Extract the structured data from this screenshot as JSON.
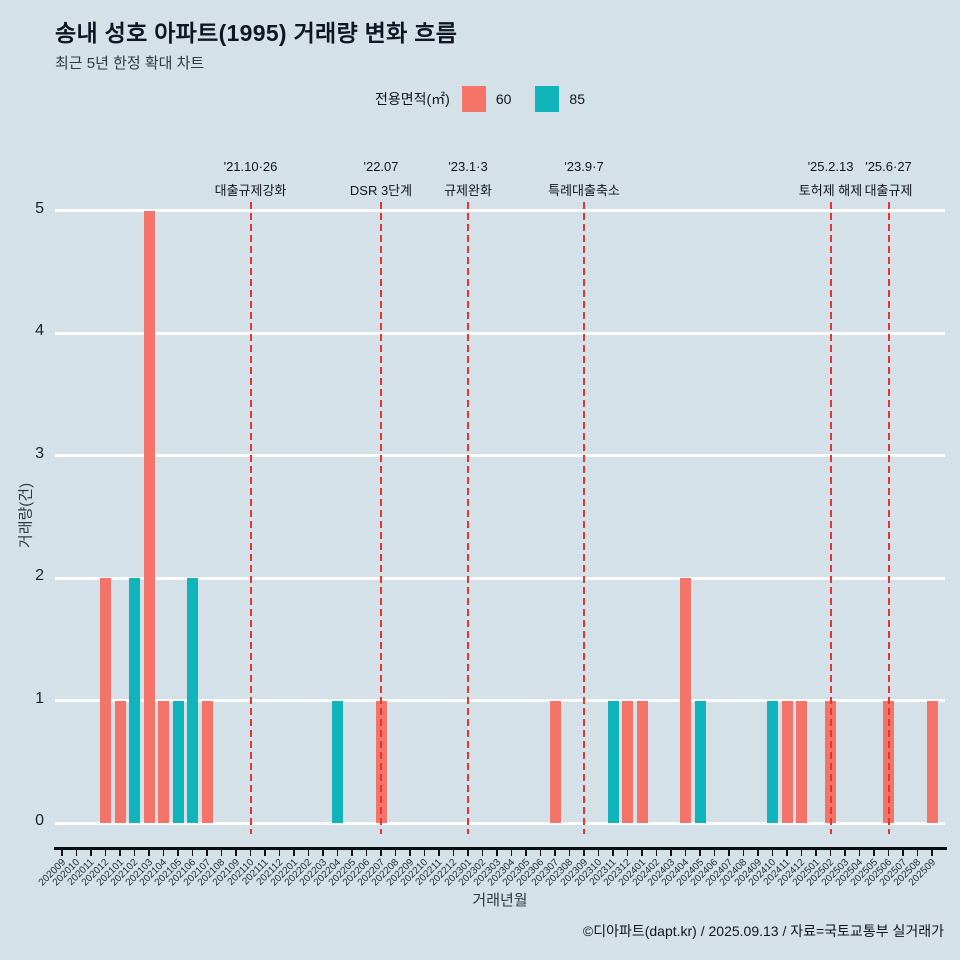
{
  "header": {
    "title": "송내 성호 아파트(1995) 거래량 변화 흐름",
    "subtitle": "최근 5년 한정 확대 차트"
  },
  "legend": {
    "label": "전용면적(㎡)",
    "items": [
      {
        "label": "60",
        "color": "#f4746a"
      },
      {
        "label": "85",
        "color": "#0fb5bb"
      }
    ]
  },
  "chart_data": {
    "type": "bar",
    "title": "송내 성호 아파트(1995) 거래량 변화 흐름",
    "xlabel": "거래년월",
    "ylabel": "거래량(건)",
    "ylim": [
      0,
      5
    ],
    "yticks": [
      0,
      1,
      2,
      3,
      4,
      5
    ],
    "grid": "horizontal-white",
    "legend_position": "top",
    "annotation_color": "#e8342e",
    "categories": [
      "202009",
      "202010",
      "202011",
      "202012",
      "202101",
      "202102",
      "202103",
      "202104",
      "202105",
      "202106",
      "202107",
      "202108",
      "202109",
      "202110",
      "202111",
      "202112",
      "202201",
      "202202",
      "202203",
      "202204",
      "202205",
      "202206",
      "202207",
      "202208",
      "202209",
      "202210",
      "202211",
      "202212",
      "202301",
      "202302",
      "202303",
      "202304",
      "202305",
      "202306",
      "202307",
      "202308",
      "202309",
      "202310",
      "202311",
      "202312",
      "202401",
      "202402",
      "202403",
      "202404",
      "202405",
      "202406",
      "202407",
      "202408",
      "202409",
      "202410",
      "202411",
      "202412",
      "202501",
      "202502",
      "202503",
      "202504",
      "202505",
      "202506",
      "202507",
      "202508",
      "202509"
    ],
    "series": [
      {
        "name": "60",
        "color": "#f4746a",
        "values": [
          0,
          0,
          0,
          2,
          1,
          0,
          5,
          1,
          0,
          0,
          1,
          0,
          0,
          0,
          0,
          0,
          0,
          0,
          0,
          0,
          0,
          0,
          1,
          0,
          0,
          0,
          0,
          0,
          0,
          0,
          0,
          0,
          0,
          0,
          1,
          0,
          0,
          0,
          0,
          1,
          1,
          0,
          0,
          2,
          0,
          0,
          0,
          0,
          0,
          0,
          1,
          1,
          0,
          1,
          0,
          0,
          0,
          1,
          0,
          0,
          1
        ]
      },
      {
        "name": "85",
        "color": "#0fb5bb",
        "values": [
          0,
          0,
          0,
          0,
          0,
          2,
          0,
          0,
          1,
          2,
          0,
          0,
          0,
          0,
          0,
          0,
          0,
          0,
          0,
          1,
          0,
          0,
          0,
          0,
          0,
          0,
          0,
          0,
          0,
          0,
          0,
          0,
          0,
          0,
          0,
          0,
          0,
          0,
          1,
          0,
          0,
          0,
          0,
          0,
          1,
          0,
          0,
          0,
          0,
          1,
          0,
          0,
          0,
          0,
          0,
          0,
          0,
          0,
          0,
          0,
          0
        ]
      }
    ],
    "annotations": [
      {
        "month": "202110",
        "date": "'21.10·26",
        "label": "대출규제강화"
      },
      {
        "month": "202207",
        "date": "'22.07",
        "label": "DSR 3단계"
      },
      {
        "month": "202301",
        "date": "'23.1·3",
        "label": "규제완화"
      },
      {
        "month": "202309",
        "date": "'23.9·7",
        "label": "특례대출축소"
      },
      {
        "month": "202502",
        "date": "'25.2.13",
        "label": "토허제 해제"
      },
      {
        "month": "202506",
        "date": "'25.6·27",
        "label": "대출규제"
      }
    ]
  },
  "footer": {
    "credit": "©디아파트(dapt.kr) / 2025.09.13 / 자료=국토교통부 실거래가"
  }
}
